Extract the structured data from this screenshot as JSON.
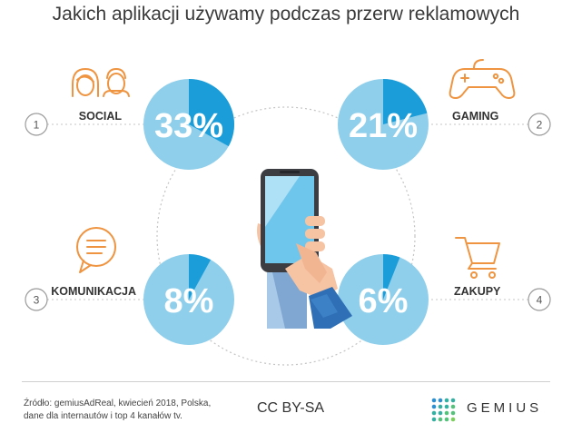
{
  "title": "Jakich aplikacji używamy podczas przerw reklamowych",
  "chart_data": {
    "type": "pie",
    "title": "Jakich aplikacji używamy podczas przerw reklamowych",
    "unit": "%",
    "series": [
      {
        "number": "1",
        "name": "SOCIAL",
        "value": 33,
        "label": "33%",
        "icon": "people-icon"
      },
      {
        "number": "2",
        "name": "GAMING",
        "value": 21,
        "label": "21%",
        "icon": "gamepad-icon"
      },
      {
        "number": "3",
        "name": "KOMUNIKACJA",
        "value": 8,
        "label": "8%",
        "icon": "chat-bubble-icon"
      },
      {
        "number": "4",
        "name": "ZAKUPY",
        "value": 6,
        "label": "6%",
        "icon": "shopping-cart-icon"
      }
    ]
  },
  "colors": {
    "pie_base": "#8fcfeb",
    "pie_slice": "#1b9dd9",
    "icon": "#ef9440",
    "ring": "#c4c4c4"
  },
  "footer": {
    "source_line1": "Źródło: gemiusAdReal, kwiecień 2018, Polska,",
    "source_line2": "dane dla internautów i top 4 kanałów tv.",
    "license": "CC BY-SA",
    "brand": "GEMIUS"
  }
}
